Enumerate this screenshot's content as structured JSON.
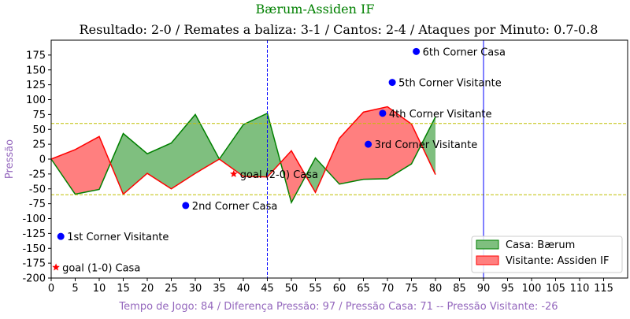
{
  "chart_data": {
    "type": "area",
    "title": "Bærum-Assiden IF",
    "subtitle": "Resultado: 2-0 / Remates a baliza: 3-1 / Cantos: 2-4 / Ataques por Minuto: 0.7-0.8",
    "xlabel": "Tempo de Jogo: 84 / Diferença Pressão: 97 / Pressão Casa: 71 -- Pressão Visitante: -26",
    "ylabel": "Pressão",
    "xlim": [
      0,
      120
    ],
    "ylim": [
      -200,
      200
    ],
    "xticks": [
      0,
      5,
      10,
      15,
      20,
      25,
      30,
      35,
      40,
      45,
      50,
      55,
      60,
      65,
      70,
      75,
      80,
      85,
      90,
      95,
      100,
      105,
      110,
      115
    ],
    "yticks": [
      -200,
      -175,
      -150,
      -125,
      -100,
      -75,
      -50,
      -25,
      0,
      25,
      50,
      75,
      100,
      125,
      150,
      175
    ],
    "colors": {
      "home_line": "#008000",
      "home_fill": "#7fbf7f",
      "away_line": "#ff0000",
      "away_fill": "#ff7f7f",
      "threshold": "#bfbf00",
      "halftime": "#0000ff",
      "event": "#0000ff",
      "goal": "#ff0000"
    },
    "series": [
      {
        "name": "Casa: Bærum",
        "x": [
          0,
          5,
          10,
          15,
          20,
          25,
          30,
          35,
          40,
          45,
          50,
          55,
          60,
          65,
          70,
          75,
          80
        ],
        "values": [
          0,
          -59,
          -51,
          43,
          9,
          27,
          75,
          0,
          58,
          77,
          -73,
          2,
          -42,
          -34,
          -33,
          -8,
          71
        ]
      },
      {
        "name": "Visitante: Assiden IF",
        "x": [
          0,
          5,
          10,
          15,
          20,
          25,
          30,
          35,
          40,
          45,
          50,
          55,
          60,
          65,
          70,
          75,
          80
        ],
        "values": [
          0,
          16,
          38,
          -59,
          -24,
          -50,
          -24,
          0,
          -29,
          -30,
          14,
          -56,
          35,
          79,
          88,
          59,
          -26
        ]
      }
    ],
    "threshold_lines": [
      60,
      -60
    ],
    "halftime_line": 45,
    "fulltime_line": 90,
    "events": [
      {
        "label": "1st Corner Visitante",
        "x": 2,
        "y": -130,
        "marker": "dot"
      },
      {
        "label": "goal (1-0) Casa",
        "x": 1,
        "y": -182,
        "marker": "star"
      },
      {
        "label": "2nd Corner Casa",
        "x": 28,
        "y": -78,
        "marker": "dot"
      },
      {
        "label": "goal (2-0) Casa",
        "x": 38,
        "y": -25,
        "marker": "star"
      },
      {
        "label": "3rd Corner Visitante",
        "x": 66,
        "y": 25,
        "marker": "dot"
      },
      {
        "label": "4th Corner Visitante",
        "x": 69,
        "y": 77,
        "marker": "dot"
      },
      {
        "label": "5th Corner Visitante",
        "x": 71,
        "y": 129,
        "marker": "dot"
      },
      {
        "label": "6th Corner Casa",
        "x": 76,
        "y": 181,
        "marker": "dot"
      }
    ],
    "legend": {
      "position": "bottom-right",
      "entries": [
        "Casa: Bærum",
        "Visitante: Assiden IF"
      ]
    },
    "grid": false
  }
}
